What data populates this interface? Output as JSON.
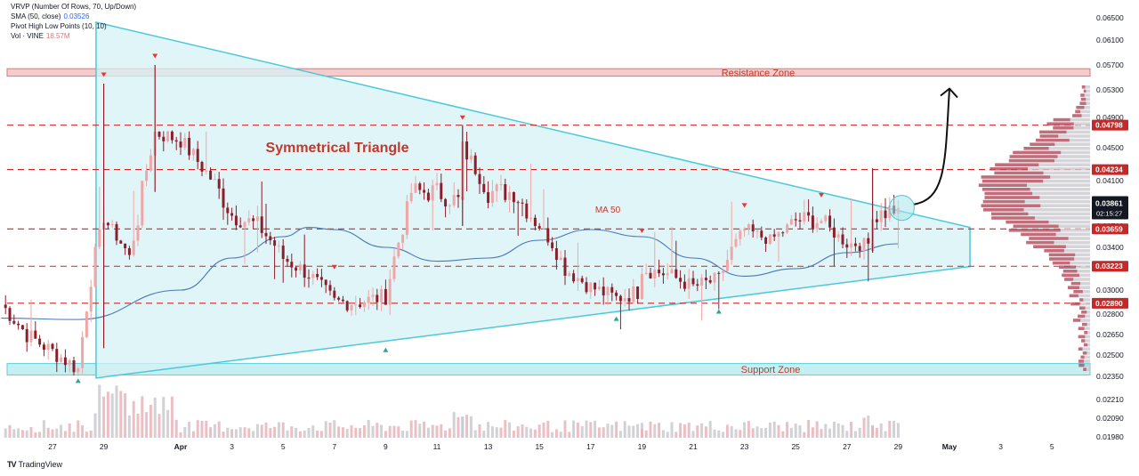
{
  "legend": {
    "vrvp": "VRVP (Number Of Rows, 70, Up/Down)",
    "sma_label": "SMA (50, close)",
    "sma_value": "0.03526",
    "pivot": "Pivot High Low Points (10, 10)",
    "vol_label": "Vol · VINE",
    "vol_value": "18.57M"
  },
  "brand": {
    "icon": "tradingview-logo-icon",
    "name": "TradingView"
  },
  "annotations": {
    "pattern_title": "Symmetrical Triangle",
    "ma_label": "MA 50",
    "resistance_zone": "Resistance Zone",
    "support_zone": "Support Zone"
  },
  "price_label": {
    "price": "0.03861",
    "countdown": "02:15:27"
  },
  "colors": {
    "triangle": "#4cc9d8",
    "resistance": "#e06666",
    "support": "#4cc9d8",
    "bull": "#f0a6a6",
    "bear": "#8b1e2b",
    "dash_line": "#c62828",
    "sma": "#4a78b5",
    "volume": "#c9c9cf"
  },
  "chart_data": {
    "type": "candlestick",
    "title": "",
    "xlabel": "",
    "ylabel": "",
    "ylim": [
      0.0198,
      0.0668
    ],
    "x_ticks": [
      "27",
      "29",
      "Apr",
      "3",
      "5",
      "7",
      "9",
      "11",
      "13",
      "15",
      "17",
      "19",
      "21",
      "23",
      "25",
      "27",
      "29",
      "May",
      "3",
      "5"
    ],
    "y_ticks": [
      "0.06500",
      "0.06100",
      "0.05700",
      "0.05300",
      "0.04900",
      "0.04500",
      "0.04100",
      "0.03700",
      "0.03400",
      "0.03000",
      "0.02800",
      "0.02650",
      "0.02500",
      "0.02350",
      "0.02210",
      "0.02090",
      "0.01980"
    ],
    "horizontal_levels": [
      "0.04798",
      "0.04234",
      "0.03659",
      "0.03223",
      "0.02890"
    ],
    "current_price": "0.03861",
    "resistance_zone": [
      0.0552,
      0.0564
    ],
    "support_zone": [
      0.0236,
      0.0244
    ],
    "pivot_highs": [
      "Mar 29",
      "Mar 31",
      "Apr 7",
      "Apr 12",
      "Apr 19",
      "Apr 23",
      "Apr 26"
    ],
    "pivot_lows": [
      "Mar 28",
      "Apr 9",
      "Apr 18",
      "Apr 22"
    ],
    "series": [
      {
        "name": "VINE",
        "waypoints": [
          {
            "x": "Mar 25",
            "close": 0.0288
          },
          {
            "x": "Mar 26",
            "close": 0.0265
          },
          {
            "x": "Mar 28",
            "close": 0.024
          },
          {
            "x": "Mar 29",
            "close": 0.038
          },
          {
            "x": "Mar 30",
            "close": 0.033
          },
          {
            "x": "Mar 31",
            "close": 0.047
          },
          {
            "x": "Apr 1",
            "close": 0.046
          },
          {
            "x": "Apr 2",
            "close": 0.042
          },
          {
            "x": "Apr 3",
            "close": 0.038
          },
          {
            "x": "Apr 4",
            "close": 0.037
          },
          {
            "x": "Apr 5",
            "close": 0.033
          },
          {
            "x": "Apr 6",
            "close": 0.0315
          },
          {
            "x": "Apr 7",
            "close": 0.029
          },
          {
            "x": "Apr 8",
            "close": 0.029
          },
          {
            "x": "Apr 9",
            "close": 0.0295
          },
          {
            "x": "Apr 10",
            "close": 0.04
          },
          {
            "x": "Apr 11",
            "close": 0.04
          },
          {
            "x": "Apr 12",
            "close": 0.039
          },
          {
            "x": "Apr 12",
            "close": 0.045
          },
          {
            "x": "Apr 13",
            "close": 0.04
          },
          {
            "x": "Apr 14",
            "close": 0.04
          },
          {
            "x": "Apr 15",
            "close": 0.037
          },
          {
            "x": "Apr 16",
            "close": 0.032
          },
          {
            "x": "Apr 17",
            "close": 0.0303
          },
          {
            "x": "Apr 18",
            "close": 0.0293
          },
          {
            "x": "Apr 19",
            "close": 0.03
          },
          {
            "x": "Apr 19",
            "close": 0.032
          },
          {
            "x": "Apr 20",
            "close": 0.0315
          },
          {
            "x": "Apr 21",
            "close": 0.0303
          },
          {
            "x": "Apr 22",
            "close": 0.031
          },
          {
            "x": "Apr 23",
            "close": 0.0365
          },
          {
            "x": "Apr 24",
            "close": 0.035
          },
          {
            "x": "Apr 25",
            "close": 0.0375
          },
          {
            "x": "Apr 26",
            "close": 0.0375
          },
          {
            "x": "Apr 27",
            "close": 0.0345
          },
          {
            "x": "Apr 28",
            "close": 0.0345
          },
          {
            "x": "Apr 28",
            "close": 0.0378
          },
          {
            "x": "Apr 29",
            "close": 0.0386
          }
        ]
      },
      {
        "name": "SMA (50, close)",
        "waypoints": [
          {
            "x": "Mar 25",
            "y": 0.0277
          },
          {
            "x": "Mar 28",
            "y": 0.0276
          },
          {
            "x": "Apr 1",
            "y": 0.03
          },
          {
            "x": "Apr 3",
            "y": 0.033
          },
          {
            "x": "Apr 5",
            "y": 0.0355
          },
          {
            "x": "Apr 6",
            "y": 0.0368
          },
          {
            "x": "Apr 7",
            "y": 0.0365
          },
          {
            "x": "Apr 9",
            "y": 0.034
          },
          {
            "x": "Apr 11",
            "y": 0.0327
          },
          {
            "x": "Apr 13",
            "y": 0.033
          },
          {
            "x": "Apr 15",
            "y": 0.035
          },
          {
            "x": "Apr 17",
            "y": 0.0365
          },
          {
            "x": "Apr 19",
            "y": 0.0355
          },
          {
            "x": "Apr 21",
            "y": 0.033
          },
          {
            "x": "Apr 23",
            "y": 0.0313
          },
          {
            "x": "Apr 25",
            "y": 0.032
          },
          {
            "x": "Apr 27",
            "y": 0.0335
          },
          {
            "x": "Apr 29",
            "y": 0.0345
          }
        ]
      }
    ],
    "triangle": [
      {
        "x": "Mar 28.7",
        "y": 0.0658
      },
      {
        "x": "Mar 28.7",
        "y": 0.0234
      },
      {
        "x": "May 1.8",
        "y": 0.0322
      },
      {
        "x": "May 1.8",
        "y": 0.0368
      }
    ],
    "projection_arrow_target": {
      "x": "Apr 31",
      "y": 0.0532
    }
  }
}
